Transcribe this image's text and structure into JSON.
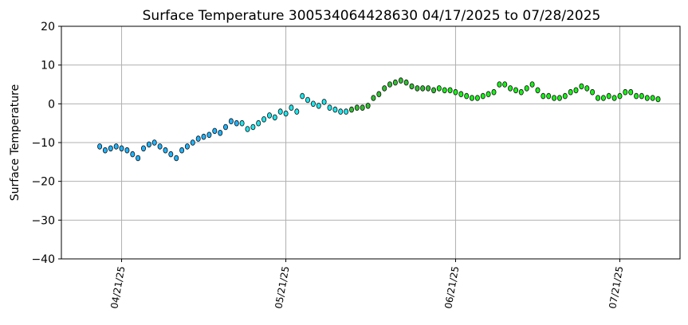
{
  "chart_data": {
    "type": "scatter",
    "title": "Surface Temperature 300534064428630  04/17/2025 to 07/28/2025",
    "xlabel": "",
    "ylabel": "Surface Temperature",
    "xlim": [
      "2025-04-10",
      "2025-08-01"
    ],
    "ylim": [
      -40,
      20
    ],
    "yticks": [
      -40,
      -30,
      -20,
      -10,
      0,
      10,
      20
    ],
    "xticks": [
      {
        "date": "2025-04-21",
        "label": "04/21/25"
      },
      {
        "date": "2025-05-21",
        "label": "05/21/25"
      },
      {
        "date": "2025-06-21",
        "label": "06/21/25"
      },
      {
        "date": "2025-07-21",
        "label": "07/21/25"
      }
    ],
    "grid": true,
    "colors": {
      "early": "#1fb3ff",
      "mid": "#1ee5ec",
      "late_mid": "#2fbf2f",
      "late": "#19f019",
      "edge": "#111111",
      "grid": "#b0b0b0"
    },
    "series": [
      {
        "points": [
          [
            "2025-04-17",
            -11
          ],
          [
            "2025-04-18",
            -12
          ],
          [
            "2025-04-19",
            -11.5
          ],
          [
            "2025-04-20",
            -11
          ],
          [
            "2025-04-21",
            -11.5
          ],
          [
            "2025-04-22",
            -12
          ],
          [
            "2025-04-23",
            -13
          ],
          [
            "2025-04-24",
            -14
          ],
          [
            "2025-04-25",
            -11.5
          ],
          [
            "2025-04-26",
            -10.5
          ],
          [
            "2025-04-27",
            -10
          ],
          [
            "2025-04-28",
            -11
          ],
          [
            "2025-04-29",
            -12
          ],
          [
            "2025-04-30",
            -13
          ],
          [
            "2025-05-01",
            -14
          ],
          [
            "2025-05-02",
            -12
          ],
          [
            "2025-05-03",
            -11
          ],
          [
            "2025-05-04",
            -10
          ],
          [
            "2025-05-05",
            -9
          ],
          [
            "2025-05-06",
            -8.5
          ],
          [
            "2025-05-07",
            -8
          ],
          [
            "2025-05-08",
            -7
          ],
          [
            "2025-05-09",
            -7.5
          ],
          [
            "2025-05-10",
            -6
          ],
          [
            "2025-05-11",
            -4.5
          ],
          [
            "2025-05-12",
            -5
          ],
          [
            "2025-05-13",
            -5
          ],
          [
            "2025-05-14",
            -6.5
          ],
          [
            "2025-05-15",
            -6
          ],
          [
            "2025-05-16",
            -5
          ],
          [
            "2025-05-17",
            -4
          ],
          [
            "2025-05-18",
            -3
          ],
          [
            "2025-05-19",
            -3.5
          ],
          [
            "2025-05-20",
            -2
          ],
          [
            "2025-05-21",
            -2.5
          ],
          [
            "2025-05-22",
            -1
          ],
          [
            "2025-05-23",
            -2
          ],
          [
            "2025-05-24",
            2
          ],
          [
            "2025-05-25",
            1
          ],
          [
            "2025-05-26",
            0
          ],
          [
            "2025-05-27",
            -0.5
          ],
          [
            "2025-05-28",
            0.5
          ],
          [
            "2025-05-29",
            -1
          ],
          [
            "2025-05-30",
            -1.5
          ],
          [
            "2025-05-31",
            -2
          ],
          [
            "2025-06-01",
            -2
          ],
          [
            "2025-06-02",
            -1.5
          ],
          [
            "2025-06-03",
            -1
          ],
          [
            "2025-06-04",
            -1
          ],
          [
            "2025-06-05",
            -0.5
          ],
          [
            "2025-06-06",
            1.5
          ],
          [
            "2025-06-07",
            2.5
          ],
          [
            "2025-06-08",
            4
          ],
          [
            "2025-06-09",
            5
          ],
          [
            "2025-06-10",
            5.5
          ],
          [
            "2025-06-11",
            6
          ],
          [
            "2025-06-12",
            5.5
          ],
          [
            "2025-06-13",
            4.5
          ],
          [
            "2025-06-14",
            4
          ],
          [
            "2025-06-15",
            4
          ],
          [
            "2025-06-16",
            4
          ],
          [
            "2025-06-17",
            3.5
          ],
          [
            "2025-06-18",
            4
          ],
          [
            "2025-06-19",
            3.5
          ],
          [
            "2025-06-20",
            3.5
          ],
          [
            "2025-06-21",
            3
          ],
          [
            "2025-06-22",
            2.5
          ],
          [
            "2025-06-23",
            2
          ],
          [
            "2025-06-24",
            1.5
          ],
          [
            "2025-06-25",
            1.5
          ],
          [
            "2025-06-26",
            2
          ],
          [
            "2025-06-27",
            2.5
          ],
          [
            "2025-06-28",
            3
          ],
          [
            "2025-06-29",
            5
          ],
          [
            "2025-06-30",
            5
          ],
          [
            "2025-07-01",
            4
          ],
          [
            "2025-07-02",
            3.5
          ],
          [
            "2025-07-03",
            3
          ],
          [
            "2025-07-04",
            4
          ],
          [
            "2025-07-05",
            5
          ],
          [
            "2025-07-06",
            3.5
          ],
          [
            "2025-07-07",
            2
          ],
          [
            "2025-07-08",
            2
          ],
          [
            "2025-07-09",
            1.5
          ],
          [
            "2025-07-10",
            1.5
          ],
          [
            "2025-07-11",
            2
          ],
          [
            "2025-07-12",
            3
          ],
          [
            "2025-07-13",
            3.5
          ],
          [
            "2025-07-14",
            4.5
          ],
          [
            "2025-07-15",
            4
          ],
          [
            "2025-07-16",
            3
          ],
          [
            "2025-07-17",
            1.5
          ],
          [
            "2025-07-18",
            1.5
          ],
          [
            "2025-07-19",
            2
          ],
          [
            "2025-07-20",
            1.5
          ],
          [
            "2025-07-21",
            2
          ],
          [
            "2025-07-22",
            3
          ],
          [
            "2025-07-23",
            3
          ],
          [
            "2025-07-24",
            2
          ],
          [
            "2025-07-25",
            2
          ],
          [
            "2025-07-26",
            1.5
          ],
          [
            "2025-07-27",
            1.5
          ],
          [
            "2025-07-28",
            1.2
          ]
        ]
      }
    ]
  }
}
